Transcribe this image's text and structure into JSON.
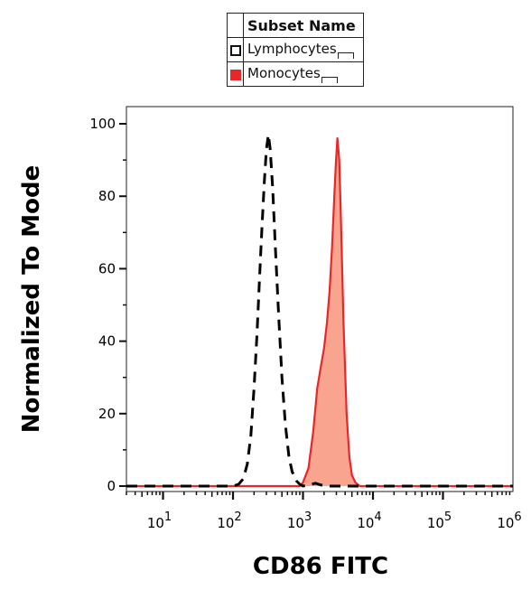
{
  "legend": {
    "header": "Subset Name",
    "items": [
      {
        "label": "Lymphocytes",
        "style": "dashed-outline",
        "color": "#000000"
      },
      {
        "label": "Monocytes",
        "style": "filled",
        "color": "#e8272a"
      }
    ]
  },
  "chart_data": {
    "type": "area",
    "title": "",
    "xlabel": "CD86 FITC",
    "ylabel": "Normalized To Mode",
    "xscale": "log",
    "xlim": [
      3,
      1000000
    ],
    "ylim": [
      0,
      100
    ],
    "yticks": [
      0,
      20,
      40,
      60,
      80,
      100
    ],
    "xticks": [
      {
        "value": 10,
        "base": "10",
        "exp": "1"
      },
      {
        "value": 100,
        "base": "10",
        "exp": "2"
      },
      {
        "value": 1000,
        "base": "10",
        "exp": "3"
      },
      {
        "value": 10000,
        "base": "10",
        "exp": "4"
      },
      {
        "value": 100000,
        "base": "10",
        "exp": "5"
      },
      {
        "value": 1000000,
        "base": "10",
        "exp": "6"
      }
    ],
    "grid": false,
    "legend_position": "top-center",
    "series": [
      {
        "name": "Lymphocytes",
        "style": "dashed",
        "color": "#000000",
        "x": [
          3,
          100,
          120,
          140,
          160,
          180,
          200,
          220,
          240,
          260,
          280,
          300,
          320,
          340,
          370,
          400,
          450,
          500,
          560,
          630,
          700,
          800,
          900,
          1000,
          1200,
          1500,
          1800,
          2500,
          5000,
          10000,
          1000000
        ],
        "y": [
          0,
          0,
          0.5,
          2,
          6,
          14,
          27,
          42,
          58,
          72,
          84,
          93,
          97,
          93,
          82,
          67,
          47,
          30,
          17,
          8,
          4,
          1.5,
          0.5,
          0,
          0.3,
          0.8,
          0.3,
          0,
          0,
          0,
          0
        ]
      },
      {
        "name": "Monocytes",
        "style": "filled",
        "color": "#e8272a",
        "fill": "#f8a48e",
        "x": [
          3,
          900,
          1000,
          1200,
          1400,
          1600,
          1800,
          2000,
          2200,
          2400,
          2600,
          2800,
          2950,
          3100,
          3300,
          3500,
          3800,
          4200,
          4600,
          5000,
          5600,
          6500,
          8000,
          1000000
        ],
        "y": [
          0,
          0,
          1,
          5,
          15,
          27,
          33,
          38,
          45,
          54,
          66,
          80,
          89,
          96,
          90,
          72,
          45,
          20,
          8,
          3,
          1,
          0,
          0,
          0
        ]
      }
    ]
  }
}
